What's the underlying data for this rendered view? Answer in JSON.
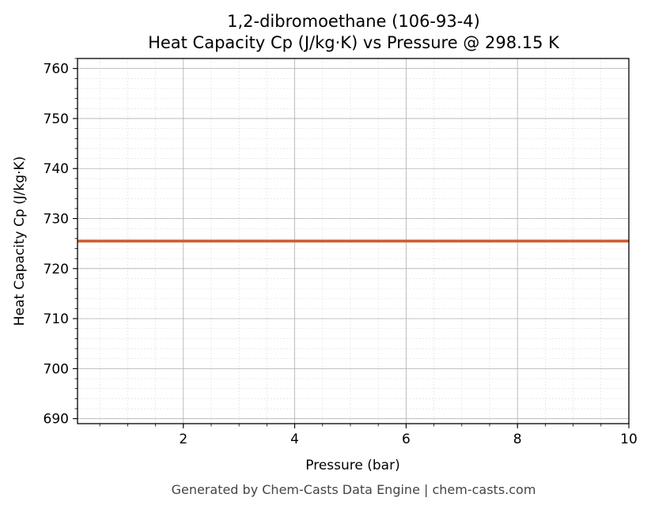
{
  "chart_data": {
    "type": "line",
    "title": "1,2-dibromoethane (106-93-4)",
    "subtitle": "Heat Capacity Cp (J/kg·K) vs Pressure @ 298.15 K",
    "xlabel": "Pressure (bar)",
    "ylabel": "Heat Capacity Cp (J/kg·K)",
    "xlim": [
      0.1,
      10
    ],
    "ylim": [
      689,
      762
    ],
    "xticks": [
      2,
      4,
      6,
      8,
      10
    ],
    "yticks": [
      690,
      700,
      710,
      720,
      730,
      740,
      750,
      760
    ],
    "grid": true,
    "series": [
      {
        "color": "#cc5a2e",
        "x": [
          0.1,
          10
        ],
        "y": [
          725.5,
          725.5
        ]
      }
    ]
  },
  "footer": "Generated by Chem-Casts Data Engine | chem-casts.com"
}
